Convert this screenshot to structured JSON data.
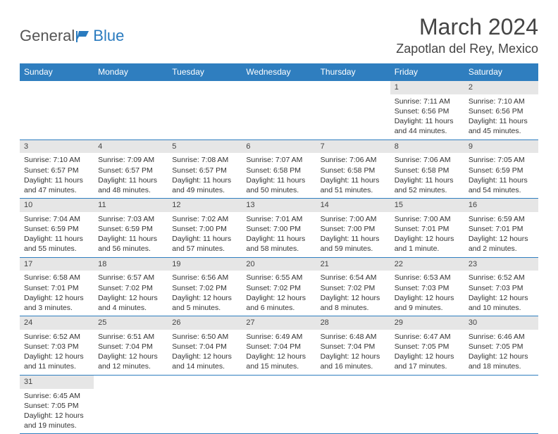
{
  "logo": {
    "part1": "General",
    "part2": "Blue"
  },
  "title": "March 2024",
  "location": "Zapotlan del Rey, Mexico",
  "colors": {
    "header_bg": "#2f7ebf",
    "header_text": "#ffffff",
    "daynum_bg": "#e6e6e6",
    "border": "#2f7ebf",
    "body_text": "#333333",
    "logo_gray": "#555555",
    "logo_blue": "#2a7bbf"
  },
  "day_headers": [
    "Sunday",
    "Monday",
    "Tuesday",
    "Wednesday",
    "Thursday",
    "Friday",
    "Saturday"
  ],
  "weeks": [
    [
      {
        "n": "",
        "lines": [
          "",
          "",
          "",
          ""
        ]
      },
      {
        "n": "",
        "lines": [
          "",
          "",
          "",
          ""
        ]
      },
      {
        "n": "",
        "lines": [
          "",
          "",
          "",
          ""
        ]
      },
      {
        "n": "",
        "lines": [
          "",
          "",
          "",
          ""
        ]
      },
      {
        "n": "",
        "lines": [
          "",
          "",
          "",
          ""
        ]
      },
      {
        "n": "1",
        "lines": [
          "Sunrise: 7:11 AM",
          "Sunset: 6:56 PM",
          "Daylight: 11 hours",
          "and 44 minutes."
        ]
      },
      {
        "n": "2",
        "lines": [
          "Sunrise: 7:10 AM",
          "Sunset: 6:56 PM",
          "Daylight: 11 hours",
          "and 45 minutes."
        ]
      }
    ],
    [
      {
        "n": "3",
        "lines": [
          "Sunrise: 7:10 AM",
          "Sunset: 6:57 PM",
          "Daylight: 11 hours",
          "and 47 minutes."
        ]
      },
      {
        "n": "4",
        "lines": [
          "Sunrise: 7:09 AM",
          "Sunset: 6:57 PM",
          "Daylight: 11 hours",
          "and 48 minutes."
        ]
      },
      {
        "n": "5",
        "lines": [
          "Sunrise: 7:08 AM",
          "Sunset: 6:57 PM",
          "Daylight: 11 hours",
          "and 49 minutes."
        ]
      },
      {
        "n": "6",
        "lines": [
          "Sunrise: 7:07 AM",
          "Sunset: 6:58 PM",
          "Daylight: 11 hours",
          "and 50 minutes."
        ]
      },
      {
        "n": "7",
        "lines": [
          "Sunrise: 7:06 AM",
          "Sunset: 6:58 PM",
          "Daylight: 11 hours",
          "and 51 minutes."
        ]
      },
      {
        "n": "8",
        "lines": [
          "Sunrise: 7:06 AM",
          "Sunset: 6:58 PM",
          "Daylight: 11 hours",
          "and 52 minutes."
        ]
      },
      {
        "n": "9",
        "lines": [
          "Sunrise: 7:05 AM",
          "Sunset: 6:59 PM",
          "Daylight: 11 hours",
          "and 54 minutes."
        ]
      }
    ],
    [
      {
        "n": "10",
        "lines": [
          "Sunrise: 7:04 AM",
          "Sunset: 6:59 PM",
          "Daylight: 11 hours",
          "and 55 minutes."
        ]
      },
      {
        "n": "11",
        "lines": [
          "Sunrise: 7:03 AM",
          "Sunset: 6:59 PM",
          "Daylight: 11 hours",
          "and 56 minutes."
        ]
      },
      {
        "n": "12",
        "lines": [
          "Sunrise: 7:02 AM",
          "Sunset: 7:00 PM",
          "Daylight: 11 hours",
          "and 57 minutes."
        ]
      },
      {
        "n": "13",
        "lines": [
          "Sunrise: 7:01 AM",
          "Sunset: 7:00 PM",
          "Daylight: 11 hours",
          "and 58 minutes."
        ]
      },
      {
        "n": "14",
        "lines": [
          "Sunrise: 7:00 AM",
          "Sunset: 7:00 PM",
          "Daylight: 11 hours",
          "and 59 minutes."
        ]
      },
      {
        "n": "15",
        "lines": [
          "Sunrise: 7:00 AM",
          "Sunset: 7:01 PM",
          "Daylight: 12 hours",
          "and 1 minute."
        ]
      },
      {
        "n": "16",
        "lines": [
          "Sunrise: 6:59 AM",
          "Sunset: 7:01 PM",
          "Daylight: 12 hours",
          "and 2 minutes."
        ]
      }
    ],
    [
      {
        "n": "17",
        "lines": [
          "Sunrise: 6:58 AM",
          "Sunset: 7:01 PM",
          "Daylight: 12 hours",
          "and 3 minutes."
        ]
      },
      {
        "n": "18",
        "lines": [
          "Sunrise: 6:57 AM",
          "Sunset: 7:02 PM",
          "Daylight: 12 hours",
          "and 4 minutes."
        ]
      },
      {
        "n": "19",
        "lines": [
          "Sunrise: 6:56 AM",
          "Sunset: 7:02 PM",
          "Daylight: 12 hours",
          "and 5 minutes."
        ]
      },
      {
        "n": "20",
        "lines": [
          "Sunrise: 6:55 AM",
          "Sunset: 7:02 PM",
          "Daylight: 12 hours",
          "and 6 minutes."
        ]
      },
      {
        "n": "21",
        "lines": [
          "Sunrise: 6:54 AM",
          "Sunset: 7:02 PM",
          "Daylight: 12 hours",
          "and 8 minutes."
        ]
      },
      {
        "n": "22",
        "lines": [
          "Sunrise: 6:53 AM",
          "Sunset: 7:03 PM",
          "Daylight: 12 hours",
          "and 9 minutes."
        ]
      },
      {
        "n": "23",
        "lines": [
          "Sunrise: 6:52 AM",
          "Sunset: 7:03 PM",
          "Daylight: 12 hours",
          "and 10 minutes."
        ]
      }
    ],
    [
      {
        "n": "24",
        "lines": [
          "Sunrise: 6:52 AM",
          "Sunset: 7:03 PM",
          "Daylight: 12 hours",
          "and 11 minutes."
        ]
      },
      {
        "n": "25",
        "lines": [
          "Sunrise: 6:51 AM",
          "Sunset: 7:04 PM",
          "Daylight: 12 hours",
          "and 12 minutes."
        ]
      },
      {
        "n": "26",
        "lines": [
          "Sunrise: 6:50 AM",
          "Sunset: 7:04 PM",
          "Daylight: 12 hours",
          "and 14 minutes."
        ]
      },
      {
        "n": "27",
        "lines": [
          "Sunrise: 6:49 AM",
          "Sunset: 7:04 PM",
          "Daylight: 12 hours",
          "and 15 minutes."
        ]
      },
      {
        "n": "28",
        "lines": [
          "Sunrise: 6:48 AM",
          "Sunset: 7:04 PM",
          "Daylight: 12 hours",
          "and 16 minutes."
        ]
      },
      {
        "n": "29",
        "lines": [
          "Sunrise: 6:47 AM",
          "Sunset: 7:05 PM",
          "Daylight: 12 hours",
          "and 17 minutes."
        ]
      },
      {
        "n": "30",
        "lines": [
          "Sunrise: 6:46 AM",
          "Sunset: 7:05 PM",
          "Daylight: 12 hours",
          "and 18 minutes."
        ]
      }
    ],
    [
      {
        "n": "31",
        "lines": [
          "Sunrise: 6:45 AM",
          "Sunset: 7:05 PM",
          "Daylight: 12 hours",
          "and 19 minutes."
        ]
      },
      {
        "n": "",
        "lines": [
          "",
          "",
          "",
          ""
        ]
      },
      {
        "n": "",
        "lines": [
          "",
          "",
          "",
          ""
        ]
      },
      {
        "n": "",
        "lines": [
          "",
          "",
          "",
          ""
        ]
      },
      {
        "n": "",
        "lines": [
          "",
          "",
          "",
          ""
        ]
      },
      {
        "n": "",
        "lines": [
          "",
          "",
          "",
          ""
        ]
      },
      {
        "n": "",
        "lines": [
          "",
          "",
          "",
          ""
        ]
      }
    ]
  ]
}
